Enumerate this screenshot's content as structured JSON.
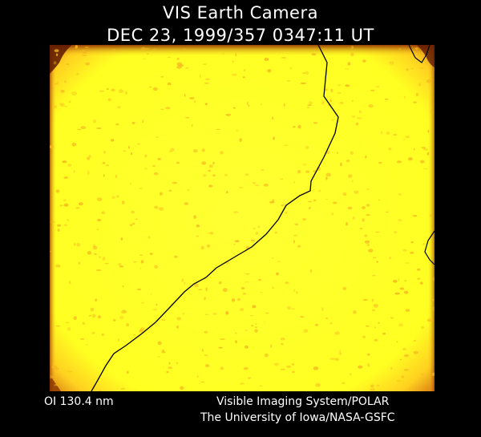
{
  "header": {
    "title": "VIS Earth Camera",
    "subtitle": "DEC 23, 1999/357 0347:11 UT"
  },
  "image": {
    "description_icon": "auroral-emission-image",
    "fill_color": "#ffff22",
    "edge_color": "#b34000",
    "speckle_color": "#f5b820",
    "coastline_color": "#000000"
  },
  "footer": {
    "filter": "OI  130.4 nm",
    "instrument": "Visible Imaging System/POLAR",
    "institution": "The University of Iowa/NASA-GSFC"
  }
}
